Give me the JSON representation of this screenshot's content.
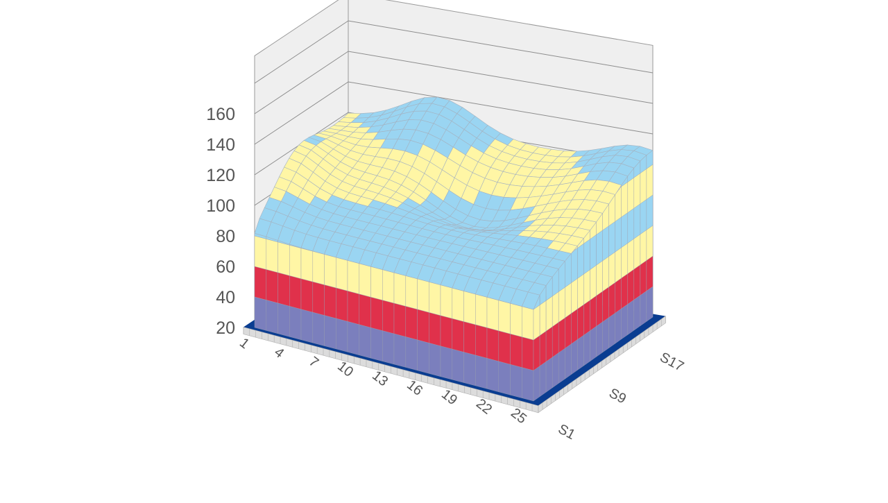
{
  "chart_data": {
    "type": "surface-3d",
    "z_axis": {
      "ticks": [
        "20",
        "40",
        "60",
        "80",
        "100",
        "120",
        "140",
        "160"
      ],
      "range": [
        20,
        160
      ]
    },
    "x_axis": {
      "ticks": [
        "1",
        "4",
        "7",
        "10",
        "13",
        "16",
        "19",
        "22",
        "25"
      ],
      "range": [
        1,
        25
      ]
    },
    "y_axis": {
      "ticks": [
        "S1",
        "S9",
        "S17"
      ],
      "series_count": 20
    },
    "color_bands": [
      {
        "from": 20,
        "to": 40,
        "color": "#7b7fbd"
      },
      {
        "from": 40,
        "to": 60,
        "color": "#e0314b"
      },
      {
        "from": 60,
        "to": 80,
        "color": "#fff6a5"
      },
      {
        "from": 80,
        "to": 100,
        "color": "#9ad5f2"
      },
      {
        "from": 100,
        "to": 120,
        "color": "#fff6a5"
      },
      {
        "from": 120,
        "to": 160,
        "color": "#9ad5f2"
      }
    ],
    "floor_color": "#0a3d91",
    "grid": true,
    "surface_summary": {
      "front_edge_height": 80,
      "back_left_peak": 140,
      "back_right_peak": 122,
      "front_left_corner": 100,
      "center_depression_min": 100
    }
  }
}
